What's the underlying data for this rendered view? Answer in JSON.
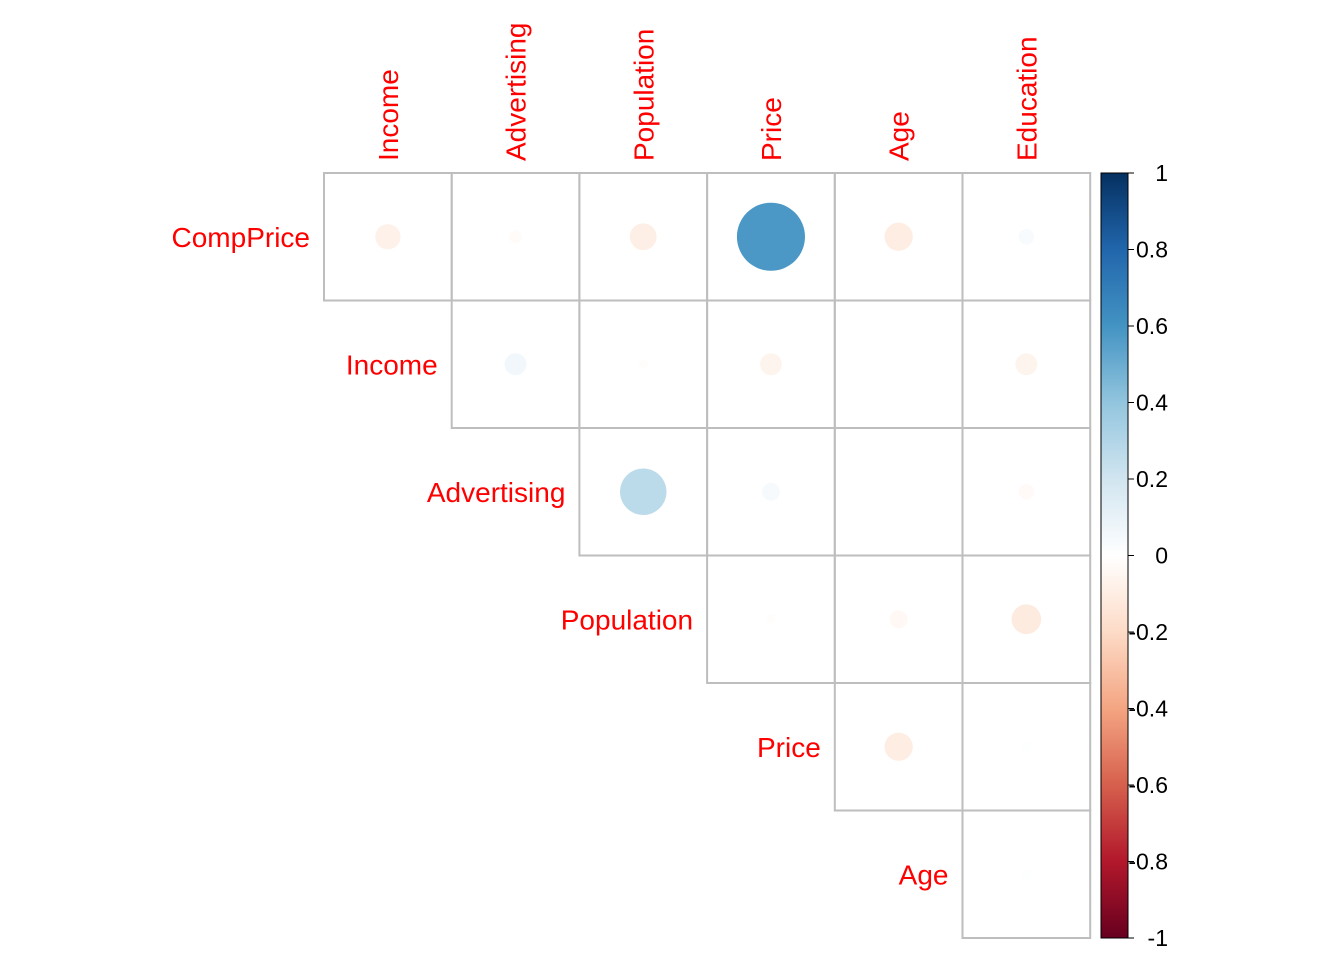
{
  "chart_data": {
    "type": "heatmap",
    "style": "correlation-circles-upper-triangle",
    "columns": [
      "Income",
      "Advertising",
      "Population",
      "Price",
      "Age",
      "Education"
    ],
    "rows": [
      "CompPrice",
      "Income",
      "Advertising",
      "Population",
      "Price",
      "Age"
    ],
    "cells": [
      {
        "row": "CompPrice",
        "col": "Income",
        "value": -0.08
      },
      {
        "row": "CompPrice",
        "col": "Advertising",
        "value": -0.02
      },
      {
        "row": "CompPrice",
        "col": "Population",
        "value": -0.09
      },
      {
        "row": "CompPrice",
        "col": "Price",
        "value": 0.58
      },
      {
        "row": "CompPrice",
        "col": "Age",
        "value": -0.1
      },
      {
        "row": "CompPrice",
        "col": "Education",
        "value": 0.03
      },
      {
        "row": "Income",
        "col": "Advertising",
        "value": 0.06
      },
      {
        "row": "Income",
        "col": "Population",
        "value": -0.01
      },
      {
        "row": "Income",
        "col": "Price",
        "value": -0.06
      },
      {
        "row": "Income",
        "col": "Age",
        "value": -0.0
      },
      {
        "row": "Income",
        "col": "Education",
        "value": -0.06
      },
      {
        "row": "Advertising",
        "col": "Population",
        "value": 0.27
      },
      {
        "row": "Advertising",
        "col": "Price",
        "value": 0.04
      },
      {
        "row": "Advertising",
        "col": "Age",
        "value": -0.0
      },
      {
        "row": "Advertising",
        "col": "Education",
        "value": -0.03
      },
      {
        "row": "Population",
        "col": "Price",
        "value": -0.01
      },
      {
        "row": "Population",
        "col": "Age",
        "value": -0.04
      },
      {
        "row": "Population",
        "col": "Education",
        "value": -0.11
      },
      {
        "row": "Price",
        "col": "Age",
        "value": -0.1
      },
      {
        "row": "Price",
        "col": "Education",
        "value": 0.01
      },
      {
        "row": "Age",
        "col": "Education",
        "value": 0.01
      }
    ],
    "color_scale": {
      "min": -1,
      "max": 1,
      "stops": [
        "#67001F",
        "#B2182B",
        "#D6604D",
        "#F4A582",
        "#FDDBC7",
        "#FFFFFF",
        "#D1E5F0",
        "#92C5DE",
        "#4393C3",
        "#2166AC",
        "#053061"
      ],
      "ticks": [
        "-1",
        "-0.8",
        "-0.6",
        "-0.4",
        "-0.2",
        "0",
        "0.2",
        "0.4",
        "0.6",
        "0.8",
        "1"
      ]
    },
    "label_color": "#FF0000",
    "grid_color": "#BEBEBE",
    "legend_position": "right"
  }
}
